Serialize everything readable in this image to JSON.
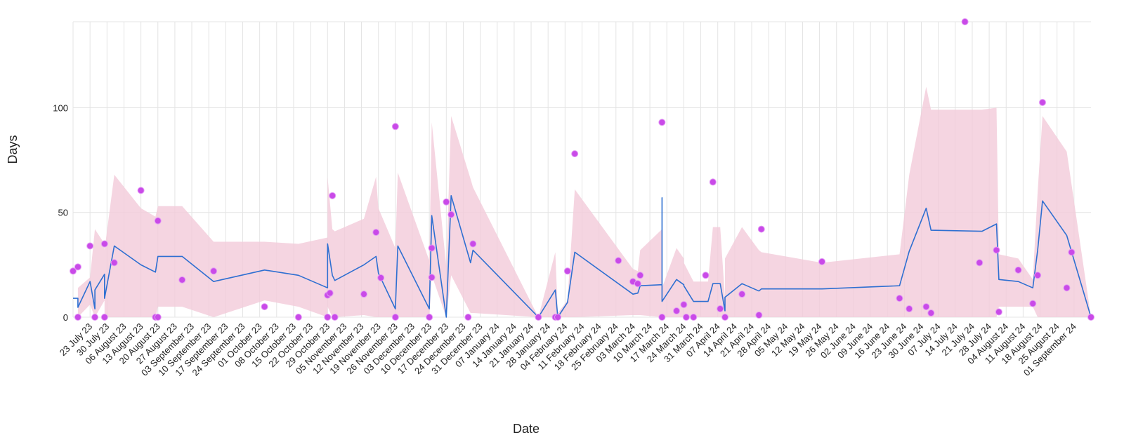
{
  "chart_data": {
    "type": "line",
    "xlabel": "Date",
    "ylabel": "Days",
    "xlim": [
      "2023-07-16",
      "2024-09-08"
    ],
    "ylim": [
      0,
      141
    ],
    "yticks": [
      0,
      50,
      100
    ],
    "grid": true,
    "xticks": [
      {
        "value": "2023-07-23",
        "label": "23 July 23"
      },
      {
        "value": "2023-07-30",
        "label": "30 July 23"
      },
      {
        "value": "2023-08-06",
        "label": "06 August 23"
      },
      {
        "value": "2023-08-13",
        "label": "13 August 23"
      },
      {
        "value": "2023-08-20",
        "label": "20 August 23"
      },
      {
        "value": "2023-08-27",
        "label": "27 August 23"
      },
      {
        "value": "2023-09-03",
        "label": "03 September 23"
      },
      {
        "value": "2023-09-10",
        "label": "10 September 23"
      },
      {
        "value": "2023-09-17",
        "label": "17 September 23"
      },
      {
        "value": "2023-09-24",
        "label": "24 September 23"
      },
      {
        "value": "2023-10-01",
        "label": "01 October 23"
      },
      {
        "value": "2023-10-08",
        "label": "08 October 23"
      },
      {
        "value": "2023-10-15",
        "label": "15 October 23"
      },
      {
        "value": "2023-10-22",
        "label": "22 October 23"
      },
      {
        "value": "2023-10-29",
        "label": "29 October 23"
      },
      {
        "value": "2023-11-05",
        "label": "05 November 23"
      },
      {
        "value": "2023-11-12",
        "label": "12 November 23"
      },
      {
        "value": "2023-11-19",
        "label": "19 November 23"
      },
      {
        "value": "2023-11-26",
        "label": "26 November 23"
      },
      {
        "value": "2023-12-03",
        "label": "03 December 23"
      },
      {
        "value": "2023-12-10",
        "label": "10 December 23"
      },
      {
        "value": "2023-12-17",
        "label": "17 December 23"
      },
      {
        "value": "2023-12-24",
        "label": "24 December 23"
      },
      {
        "value": "2023-12-31",
        "label": "31 December 23"
      },
      {
        "value": "2024-01-07",
        "label": "07 January 24"
      },
      {
        "value": "2024-01-14",
        "label": "14 January 24"
      },
      {
        "value": "2024-01-21",
        "label": "21 January 24"
      },
      {
        "value": "2024-01-28",
        "label": "28 January 24"
      },
      {
        "value": "2024-02-04",
        "label": "04 February 24"
      },
      {
        "value": "2024-02-11",
        "label": "11 February 24"
      },
      {
        "value": "2024-02-18",
        "label": "18 February 24"
      },
      {
        "value": "2024-02-25",
        "label": "25 February 24"
      },
      {
        "value": "2024-03-03",
        "label": "03 March 24"
      },
      {
        "value": "2024-03-10",
        "label": "10 March 24"
      },
      {
        "value": "2024-03-17",
        "label": "17 March 24"
      },
      {
        "value": "2024-03-24",
        "label": "24 March 24"
      },
      {
        "value": "2024-03-31",
        "label": "31 March 24"
      },
      {
        "value": "2024-04-07",
        "label": "07 April 24"
      },
      {
        "value": "2024-04-14",
        "label": "14 April 24"
      },
      {
        "value": "2024-04-21",
        "label": "21 April 24"
      },
      {
        "value": "2024-04-28",
        "label": "28 April 24"
      },
      {
        "value": "2024-05-05",
        "label": "05 May 24"
      },
      {
        "value": "2024-05-12",
        "label": "12 May 24"
      },
      {
        "value": "2024-05-19",
        "label": "19 May 24"
      },
      {
        "value": "2024-05-26",
        "label": "26 May 24"
      },
      {
        "value": "2024-06-02",
        "label": "02 June 24"
      },
      {
        "value": "2024-06-09",
        "label": "09 June 24"
      },
      {
        "value": "2024-06-16",
        "label": "16 June 24"
      },
      {
        "value": "2024-06-23",
        "label": "23 June 24"
      },
      {
        "value": "2024-06-30",
        "label": "30 June 24"
      },
      {
        "value": "2024-07-07",
        "label": "07 July 24"
      },
      {
        "value": "2024-07-14",
        "label": "14 July 24"
      },
      {
        "value": "2024-07-21",
        "label": "21 July 24"
      },
      {
        "value": "2024-07-28",
        "label": "28 July 24"
      },
      {
        "value": "2024-08-04",
        "label": "04 August 24"
      },
      {
        "value": "2024-08-11",
        "label": "11 August 24"
      },
      {
        "value": "2024-08-18",
        "label": "18 August 24"
      },
      {
        "value": "2024-08-25",
        "label": "25 August 24"
      },
      {
        "value": "2024-09-01",
        "label": "01 September 24"
      }
    ],
    "series": [
      {
        "type": "line",
        "color": "#2e6fd1",
        "band_color": "#f3cbd9",
        "x": [
          "2023-07-16",
          "2023-07-18",
          "2023-07-18",
          "2023-07-23",
          "2023-07-25",
          "2023-07-25",
          "2023-07-29",
          "2023-07-29",
          "2023-08-02",
          "2023-08-13",
          "2023-08-19",
          "2023-08-20",
          "2023-08-30",
          "2023-09-12",
          "2023-10-03",
          "2023-10-17",
          "2023-10-29",
          "2023-10-29",
          "2023-10-31",
          "2023-11-01",
          "2023-11-13",
          "2023-11-18",
          "2023-11-19",
          "2023-11-26",
          "2023-11-27",
          "2023-12-10",
          "2023-12-11",
          "2023-12-17",
          "2023-12-19",
          "2023-12-27",
          "2023-12-28",
          "2024-01-24",
          "2024-01-31",
          "2024-02-01",
          "2024-02-05",
          "2024-02-08",
          "2024-03-03",
          "2024-03-05",
          "2024-03-06",
          "2024-03-15",
          "2024-03-15",
          "2024-03-15",
          "2024-03-21",
          "2024-03-24",
          "2024-03-24",
          "2024-03-28",
          "2024-04-03",
          "2024-04-05",
          "2024-04-08",
          "2024-04-10",
          "2024-04-10",
          "2024-04-17",
          "2024-04-24",
          "2024-04-25",
          "2024-05-20",
          "2024-06-21",
          "2024-06-25",
          "2024-07-02",
          "2024-07-04",
          "2024-07-25",
          "2024-07-31",
          "2024-08-01",
          "2024-08-09",
          "2024-08-15",
          "2024-08-17",
          "2024-08-19",
          "2024-08-29",
          "2024-09-08"
        ],
        "values": [
          9,
          9,
          4.7,
          17,
          4,
          13,
          20.5,
          9,
          34,
          25,
          21.5,
          29,
          29,
          17,
          22.5,
          20,
          14,
          35,
          20,
          17.5,
          25,
          29,
          21,
          4,
          34,
          4,
          48.5,
          0,
          58,
          26,
          32,
          0,
          13,
          0,
          7,
          31,
          11,
          11.5,
          15,
          15.5,
          57,
          7.5,
          18,
          15.5,
          15,
          7.5,
          7.5,
          16,
          16,
          3,
          9.5,
          16,
          12.5,
          13.5,
          13.5,
          15,
          31.5,
          52,
          41.5,
          41,
          44.5,
          18,
          17,
          14,
          32,
          55.5,
          39,
          0
        ],
        "upper": [
          9,
          9,
          14,
          19,
          42,
          42,
          35,
          32,
          68,
          52,
          48,
          53,
          53,
          36,
          36,
          35,
          38,
          67,
          42,
          41,
          47,
          67,
          52,
          33,
          69,
          27,
          93,
          24,
          96,
          66,
          62,
          0,
          31,
          2,
          8,
          61,
          23,
          22,
          32,
          42,
          57,
          14,
          33,
          28,
          26,
          17,
          17,
          43,
          43,
          9,
          28,
          43,
          32,
          31,
          26,
          30,
          68,
          110,
          99,
          99,
          100,
          30,
          28,
          18,
          60,
          96,
          79,
          0
        ],
        "lower": [
          9,
          9,
          0,
          6,
          0,
          0,
          8,
          0,
          0,
          0,
          0,
          5,
          5,
          0,
          8,
          5,
          0,
          5,
          0,
          0,
          1,
          0,
          0,
          0,
          0,
          0,
          20,
          0,
          20,
          2,
          2,
          0,
          0,
          0,
          0,
          0,
          1,
          1,
          1,
          0,
          0,
          0,
          0,
          0,
          0,
          0,
          0,
          0,
          0,
          0,
          0,
          0,
          0,
          0,
          0,
          0,
          0,
          0,
          0,
          0,
          0,
          5,
          5,
          5,
          0,
          0,
          0,
          0
        ]
      },
      {
        "type": "scatter",
        "color": "#c94ae8",
        "x": [
          "2023-07-16",
          "2023-07-18",
          "2023-07-18",
          "2023-07-23",
          "2023-07-25",
          "2023-07-29",
          "2023-07-29",
          "2023-08-02",
          "2023-08-13",
          "2023-08-19",
          "2023-08-20",
          "2023-08-20",
          "2023-08-30",
          "2023-09-12",
          "2023-10-03",
          "2023-10-17",
          "2023-10-29",
          "2023-10-29",
          "2023-10-30",
          "2023-10-31",
          "2023-11-01",
          "2023-11-13",
          "2023-11-18",
          "2023-11-20",
          "2023-11-26",
          "2023-11-26",
          "2023-12-10",
          "2023-12-11",
          "2023-12-11",
          "2023-12-17",
          "2023-12-19",
          "2023-12-26",
          "2023-12-28",
          "2024-01-24",
          "2024-01-31",
          "2024-02-01",
          "2024-02-05",
          "2024-02-08",
          "2024-02-26",
          "2024-03-03",
          "2024-03-05",
          "2024-03-06",
          "2024-03-15",
          "2024-03-15",
          "2024-03-21",
          "2024-03-24",
          "2024-03-25",
          "2024-03-28",
          "2024-04-02",
          "2024-04-05",
          "2024-04-08",
          "2024-04-10",
          "2024-04-17",
          "2024-04-24",
          "2024-04-25",
          "2024-05-20",
          "2024-06-21",
          "2024-06-25",
          "2024-07-02",
          "2024-07-04",
          "2024-07-18",
          "2024-07-24",
          "2024-07-31",
          "2024-08-01",
          "2024-08-09",
          "2024-08-15",
          "2024-08-17",
          "2024-08-19",
          "2024-08-29",
          "2024-08-31",
          "2024-09-08"
        ],
        "values": [
          22,
          24,
          0,
          34,
          0,
          35,
          0,
          26,
          60.5,
          0,
          0,
          46,
          17.8,
          22,
          5,
          0,
          0,
          10.5,
          11.5,
          58,
          0,
          11,
          40.5,
          18.8,
          91,
          0,
          0,
          33,
          19,
          55,
          49,
          0,
          35,
          0,
          0,
          0,
          22,
          78,
          27,
          17,
          16,
          20,
          93,
          0,
          3,
          6,
          0,
          0,
          20,
          64.5,
          4,
          0,
          11,
          1,
          42,
          26.5,
          9,
          4,
          5,
          2,
          141,
          26,
          32,
          2.5,
          22.5,
          6.5,
          20,
          102.5,
          14,
          31,
          0
        ]
      }
    ]
  }
}
